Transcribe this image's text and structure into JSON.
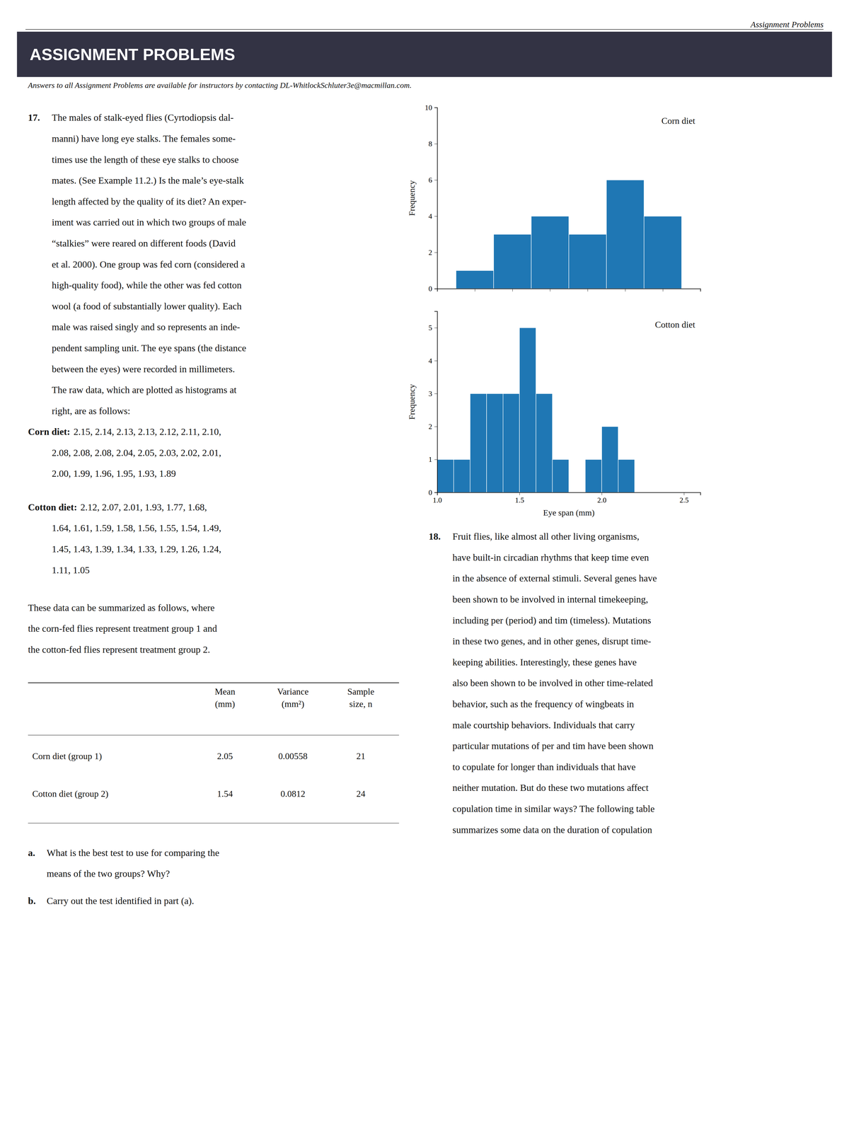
{
  "page_header": "Assignment Problems",
  "header": "ASSIGNMENT PROBLEMS",
  "subtitle": "Answers to all Assignment Problems are available for instructors by contacting DL-WhitlockSchluter3e@macmillan.com.",
  "problem17": {
    "number": "17.",
    "lines": [
      "The males of stalk-eyed flies (Cyrtodiopsis dal-",
      "manni) have long eye stalks. The females some-",
      "times use the length of these eye stalks to choose",
      "mates. (See Example 11.2.) Is the male’s eye-stalk",
      "length affected by the quality of its diet? An exper-",
      "iment was carried out in which two groups of male",
      "“stalkies” were reared on different foods (David",
      "et al. 2000). One group was fed corn (considered a",
      "high-quality food), while the other was fed cotton",
      "wool (a food of substantially lower quality). Each",
      "male was raised singly and so represents an inde-",
      "pendent sampling unit. The eye spans (the distance",
      "between the eyes) were recorded in millimeters.",
      "The raw data, which are plotted as histograms at",
      "right, are as follows:"
    ],
    "data_lists": [
      {
        "label": "Corn diet:",
        "lines": [
          "2.15, 2.14, 2.13, 2.13, 2.12, 2.11, 2.10,",
          "2.08, 2.08, 2.08, 2.04, 2.05, 2.03, 2.02, 2.01,",
          "2.00, 1.99, 1.96, 1.95, 1.93, 1.89"
        ]
      },
      {
        "label": "Cotton diet:",
        "lines": [
          "2.12, 2.07, 2.01, 1.93, 1.77, 1.68,",
          "1.64, 1.61, 1.59, 1.58, 1.56, 1.55, 1.54, 1.49,",
          "1.45, 1.43, 1.39, 1.34, 1.33, 1.29, 1.26, 1.24,",
          "1.11, 1.05"
        ]
      }
    ],
    "summary": [
      "These data can be summarized as follows, where",
      "the corn-fed flies represent treatment group 1 and",
      "the cotton-fed flies represent treatment group 2."
    ],
    "table": {
      "columns": [
        [
          "Mean",
          "(mm)"
        ],
        [
          "Variance",
          "(mm²)"
        ],
        [
          "Sample",
          "size, n"
        ]
      ],
      "rows": [
        [
          "Corn diet (group 1)",
          "2.05",
          "0.00558",
          "21"
        ],
        [
          "Cotton diet (group 2)",
          "1.54",
          "0.0812",
          "24"
        ]
      ]
    },
    "questions": [
      {
        "label": "a.",
        "lines": [
          "What is the best test to use for comparing the",
          "means of the two groups? Why?"
        ]
      },
      {
        "label": "b.",
        "lines": [
          "Carry out the test identified in part (a)."
        ]
      }
    ]
  },
  "problem18": {
    "number": "18.",
    "lines": [
      "Fruit flies, like almost all other living organisms,",
      "have built-in circadian rhythms that keep time even",
      "in the absence of external stimuli. Several genes have",
      "been shown to be involved in internal timekeeping,",
      "including per (period) and tim (timeless). Mutations",
      "in these two genes, and in other genes, disrupt time-",
      "keeping abilities. Interestingly, these genes have",
      "also been shown to be involved in other time-related",
      "behavior, such as the frequency of wingbeats in",
      "male courtship behaviors. Individuals that carry",
      "particular mutations of per and tim have been shown",
      "to copulate for longer than individuals that have",
      "neither mutation. But do these two mutations affect",
      "copulation time in similar ways? The following table",
      "summarizes some data on the duration of copulation"
    ]
  },
  "chart_data": [
    {
      "type": "histogram",
      "title": "Corn diet",
      "ylabel": "Frequency",
      "bins": [
        1.875,
        1.925,
        1.975,
        2.025,
        2.075,
        2.125,
        2.175
      ],
      "values": [
        1,
        3,
        4,
        3,
        6,
        4
      ],
      "xlim": [
        1.85,
        2.2
      ],
      "ylim": [
        0,
        10
      ],
      "xticks": [
        1.85,
        1.9,
        1.95,
        2.0,
        2.05,
        2.1,
        2.15,
        2.2
      ],
      "yticks": [
        0,
        2,
        4,
        6,
        8,
        10
      ],
      "tick_labels": "y",
      "grid": false
    },
    {
      "type": "histogram",
      "title": "Cotton diet",
      "xlabel": "Eye span (mm)",
      "ylabel": "Frequency",
      "bins": [
        1.0,
        1.1,
        1.2,
        1.3,
        1.4,
        1.5,
        1.6,
        1.7,
        1.8,
        1.9,
        2.0,
        2.1,
        2.2,
        2.3,
        2.4,
        2.5
      ],
      "values": [
        1,
        1,
        3,
        3,
        3,
        5,
        3,
        1,
        0,
        1,
        2,
        1,
        0,
        0,
        0
      ],
      "xlim": [
        1.0,
        2.6
      ],
      "ylim": [
        0,
        5.5
      ],
      "xticks": [
        {
          "value": 1.0,
          "label": "1.0"
        },
        1.5,
        {
          "value": 2.0,
          "label": "2.0"
        },
        2.5
      ],
      "yticks": [
        0,
        1,
        2,
        3,
        4,
        5
      ],
      "grid": false
    }
  ]
}
